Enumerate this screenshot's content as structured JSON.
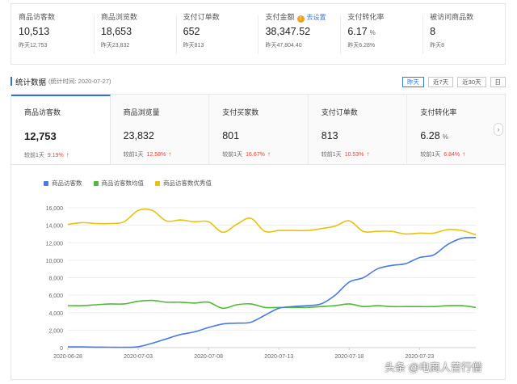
{
  "top_metrics": [
    {
      "label": "商品访客数",
      "value": "10,513",
      "unit": "",
      "sub": "昨天12,753"
    },
    {
      "label": "商品浏览数",
      "value": "18,653",
      "unit": "",
      "sub": "昨天23,832"
    },
    {
      "label": "支付订单数",
      "value": "652",
      "unit": "",
      "sub": "昨天813"
    },
    {
      "label": "支付金额",
      "value": "38,347.52",
      "unit": "",
      "sub": "昨天47,804.40",
      "link": "去设置",
      "info_icon": "!"
    },
    {
      "label": "支付转化率",
      "value": "6.17",
      "unit": "%",
      "sub": "昨天6.28%"
    },
    {
      "label": "被访问商品数",
      "value": "8",
      "unit": "",
      "sub": "昨天8"
    }
  ],
  "section": {
    "title": "统计数据",
    "time": "(统计时间: 2020-07-27)",
    "ranges": [
      "昨天",
      "近7天",
      "近30天",
      "日"
    ],
    "active_range": "昨天"
  },
  "kpis": [
    {
      "label": "商品访客数",
      "value": "12,753",
      "unit": "",
      "compare": "较前1天",
      "pct": "9.19%",
      "arrow": "↑"
    },
    {
      "label": "商品浏览量",
      "value": "23,832",
      "unit": "",
      "compare": "较前1天",
      "pct": "12.58%",
      "arrow": "↑"
    },
    {
      "label": "支付买家数",
      "value": "801",
      "unit": "",
      "compare": "较前1天",
      "pct": "16.67%",
      "arrow": "↑"
    },
    {
      "label": "支付订单数",
      "value": "813",
      "unit": "",
      "compare": "较前1天",
      "pct": "10.53%",
      "arrow": "↑"
    },
    {
      "label": "支付转化率",
      "value": "6.28",
      "unit": "%",
      "compare": "较前1天",
      "pct": "6.84%",
      "arrow": "↑"
    }
  ],
  "kpi_nav": "›",
  "watermark": "头条 @电商人苦行僧",
  "chart_data": {
    "type": "line",
    "x": [
      "2020-06-28",
      "2020-06-29",
      "2020-06-30",
      "2020-07-01",
      "2020-07-02",
      "2020-07-03",
      "2020-07-04",
      "2020-07-05",
      "2020-07-06",
      "2020-07-07",
      "2020-07-08",
      "2020-07-09",
      "2020-07-10",
      "2020-07-11",
      "2020-07-12",
      "2020-07-13",
      "2020-07-14",
      "2020-07-15",
      "2020-07-16",
      "2020-07-17",
      "2020-07-18",
      "2020-07-19",
      "2020-07-20",
      "2020-07-21",
      "2020-07-22",
      "2020-07-23",
      "2020-07-24",
      "2020-07-25",
      "2020-07-26",
      "2020-07-27"
    ],
    "xticks": [
      "2020-06-28",
      "2020-07-03",
      "2020-07-08",
      "2020-07-13",
      "2020-07-18",
      "2020-07-23"
    ],
    "ylim": [
      0,
      16000
    ],
    "yticks": [
      0,
      2000,
      4000,
      6000,
      8000,
      10000,
      12000,
      14000,
      16000
    ],
    "ytick_labels": [
      "0",
      "2,000",
      "4,000",
      "6,000",
      "8,000",
      "10,000",
      "12,000",
      "14,000",
      "16,000"
    ],
    "grid": true,
    "legend_position": "top-left",
    "series": [
      {
        "name": "商品访客数",
        "color": "#4a7be0",
        "values": [
          100,
          80,
          60,
          50,
          40,
          100,
          500,
          1000,
          1500,
          1800,
          2300,
          2700,
          2800,
          2900,
          3700,
          4500,
          4700,
          4800,
          5000,
          6000,
          7500,
          8000,
          9000,
          9400,
          9600,
          10300,
          10600,
          11800,
          12500,
          12600
        ]
      },
      {
        "name": "商品访客数均值",
        "color": "#52b83a",
        "values": [
          4800,
          4800,
          4900,
          5000,
          5000,
          5300,
          5400,
          5200,
          5200,
          5100,
          5200,
          4500,
          4900,
          5000,
          4600,
          4600,
          4600,
          4600,
          4700,
          4800,
          5000,
          4700,
          4800,
          4700,
          4700,
          4700,
          4700,
          4800,
          4800,
          4600
        ]
      },
      {
        "name": "商品访客数优秀值",
        "color": "#e8c20e",
        "values": [
          14100,
          14300,
          14200,
          14200,
          14400,
          15700,
          15700,
          14500,
          14600,
          14400,
          14400,
          13200,
          14100,
          14800,
          13300,
          13400,
          13400,
          13400,
          13600,
          13900,
          14500,
          13300,
          13300,
          13300,
          13000,
          13100,
          13100,
          13500,
          13400,
          12900
        ]
      }
    ]
  }
}
